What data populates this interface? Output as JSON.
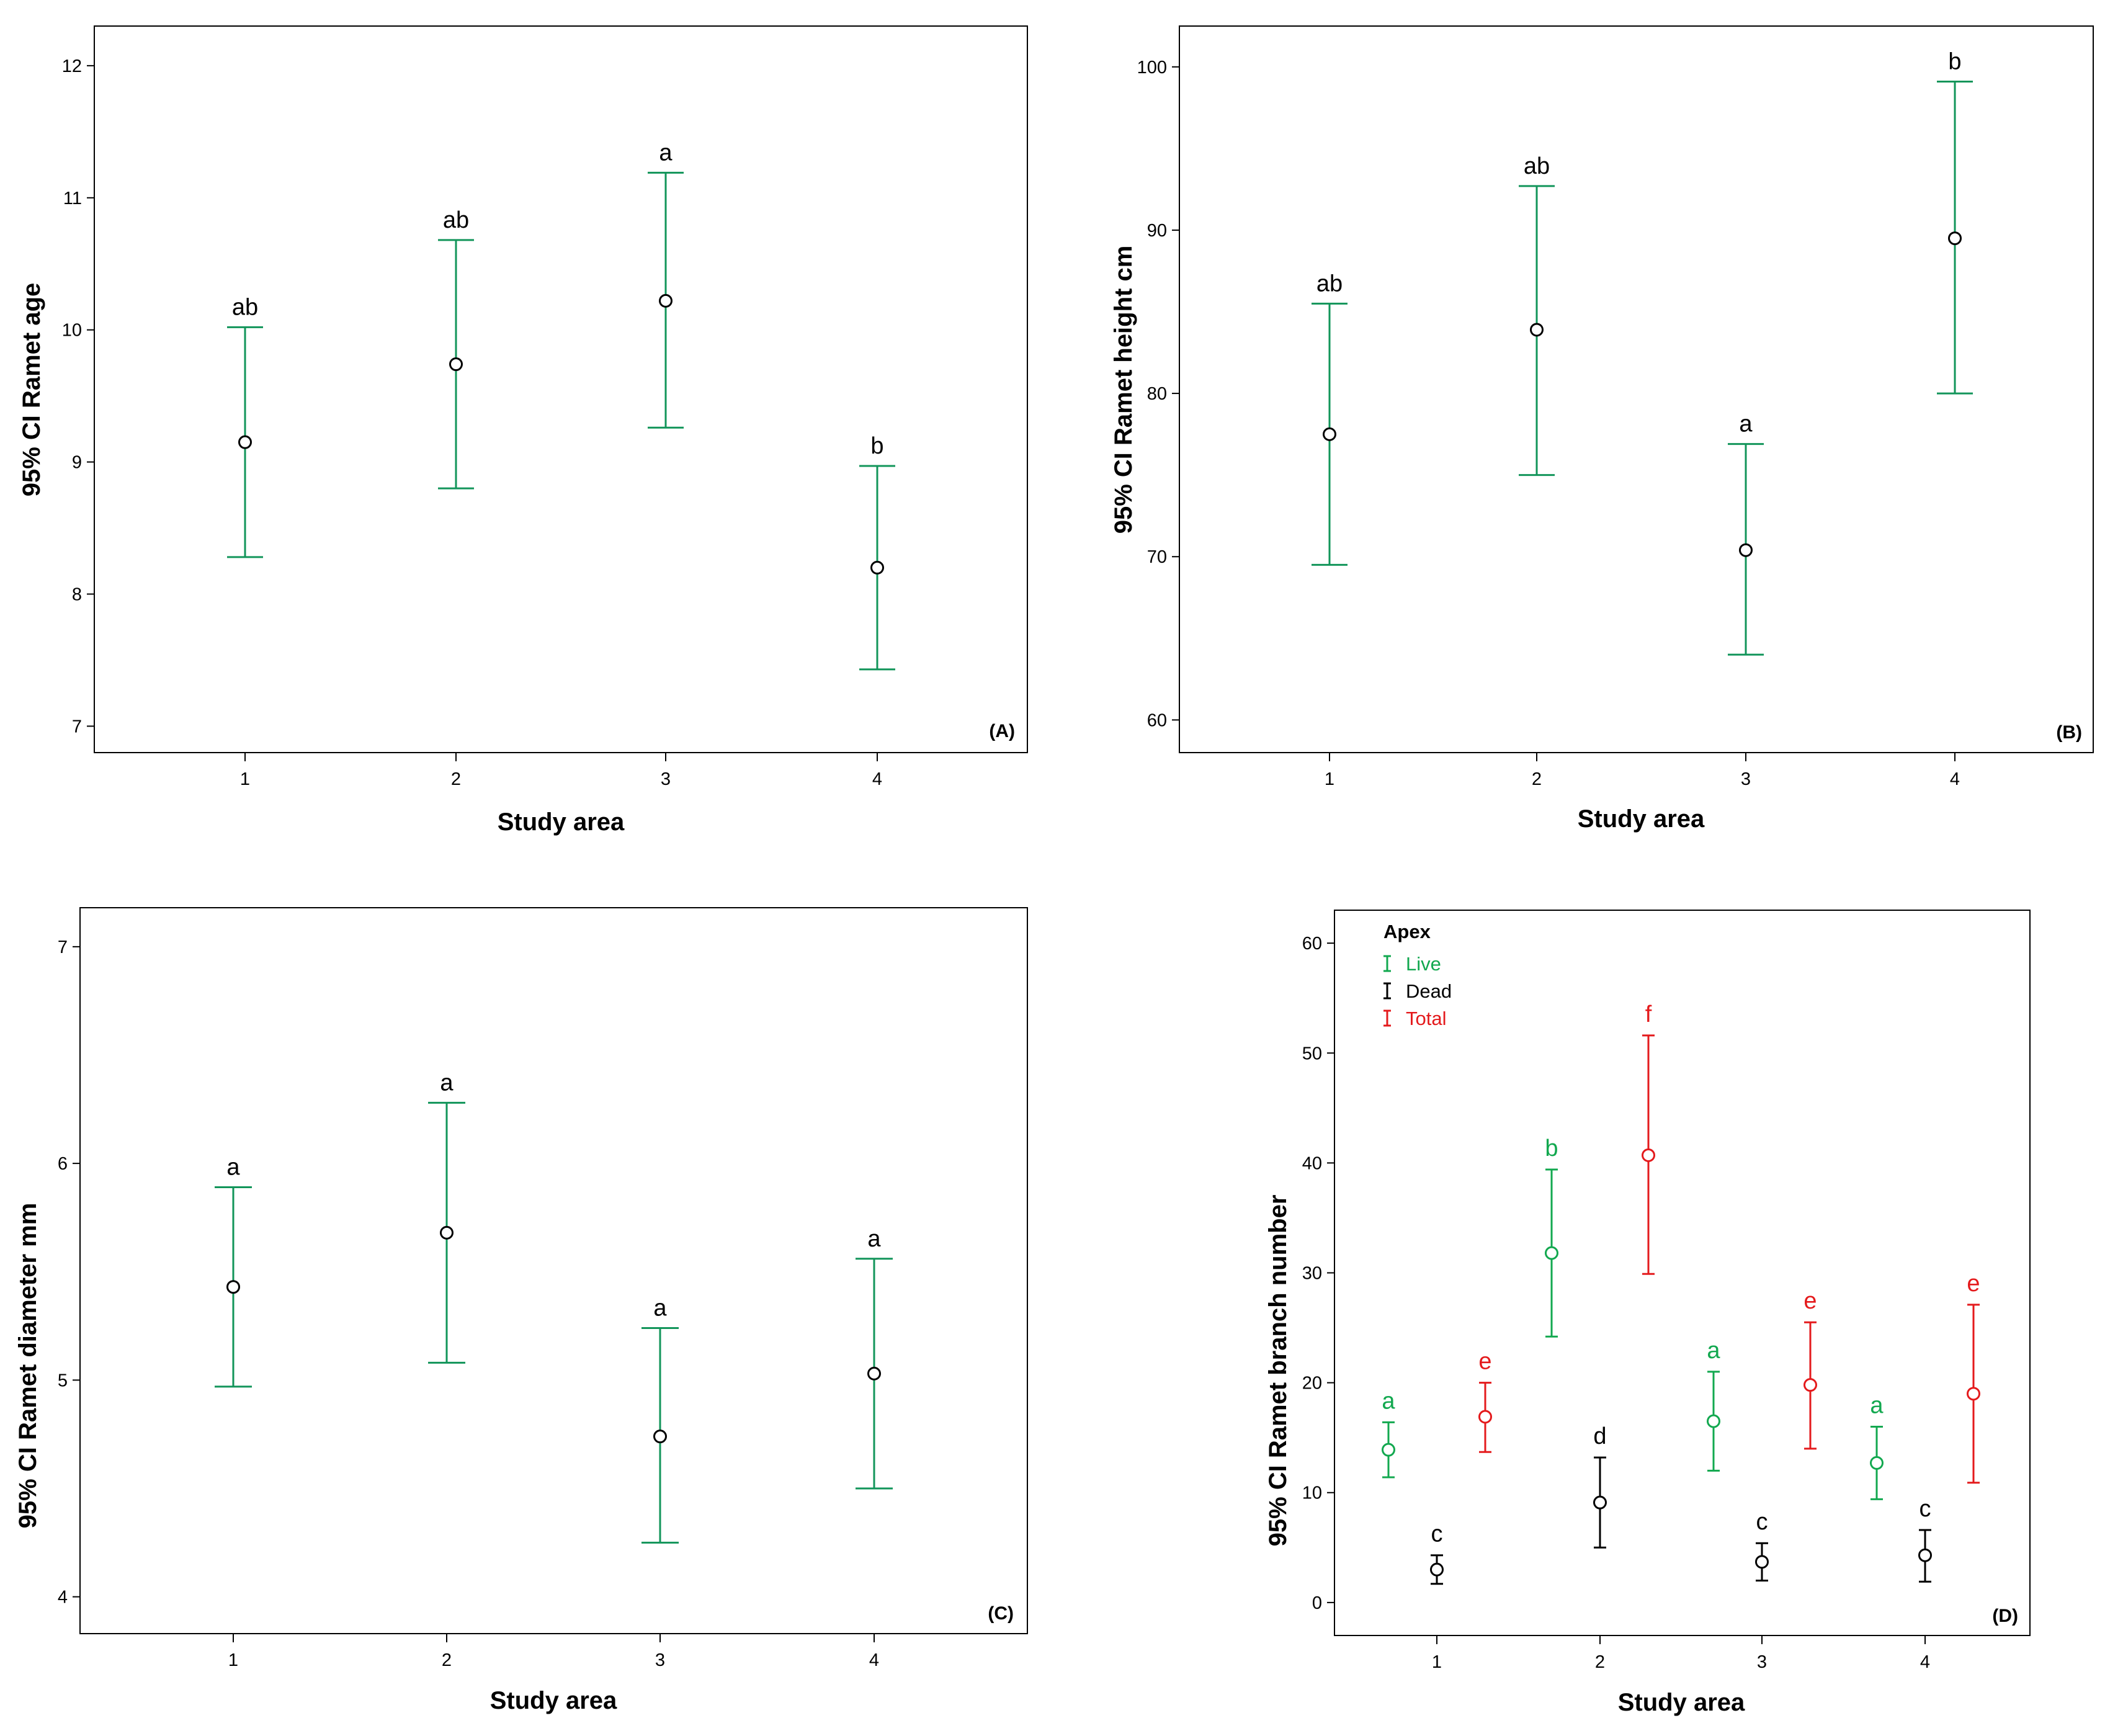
{
  "chart_data": [
    {
      "id": "A",
      "type": "errorbar",
      "panel_label": "(A)",
      "xlabel": "Study area",
      "ylabel": "95% CI Ramet age",
      "categories": [
        "1",
        "2",
        "3",
        "4"
      ],
      "ylim": [
        6.8,
        12.3
      ],
      "yticks": [
        "7",
        "8",
        "9",
        "10",
        "11",
        "12"
      ],
      "series": [
        {
          "name": "Ramet age",
          "color": "#12955a",
          "means": [
            9.15,
            9.74,
            10.22,
            8.2
          ],
          "lower": [
            8.28,
            8.8,
            9.26,
            7.43
          ],
          "upper": [
            10.02,
            10.68,
            11.19,
            8.97
          ],
          "letters": [
            "ab",
            "ab",
            "a",
            "b"
          ]
        }
      ]
    },
    {
      "id": "B",
      "type": "errorbar",
      "panel_label": "(B)",
      "xlabel": "Study area",
      "ylabel": "95% CI Ramet height cm",
      "categories": [
        "1",
        "2",
        "3",
        "4"
      ],
      "ylim": [
        58,
        102.5
      ],
      "yticks": [
        "60",
        "70",
        "80",
        "90",
        "100"
      ],
      "series": [
        {
          "name": "Ramet height",
          "color": "#12955a",
          "means": [
            77.5,
            83.9,
            70.4,
            89.5
          ],
          "lower": [
            69.5,
            75.0,
            64.0,
            80.0
          ],
          "upper": [
            85.5,
            92.7,
            76.9,
            99.1
          ],
          "letters": [
            "ab",
            "ab",
            "a",
            "b"
          ]
        }
      ]
    },
    {
      "id": "C",
      "type": "errorbar",
      "panel_label": "(C)",
      "xlabel": "Study area",
      "ylabel": "95% CI Ramet diameter mm",
      "categories": [
        "1",
        "2",
        "3",
        "4"
      ],
      "ylim": [
        3.83,
        7.18
      ],
      "yticks": [
        "4",
        "5",
        "6",
        "7"
      ],
      "series": [
        {
          "name": "Ramet diameter",
          "color": "#12955a",
          "means": [
            5.43,
            5.68,
            4.74,
            5.03
          ],
          "lower": [
            4.97,
            5.08,
            4.25,
            4.5
          ],
          "upper": [
            5.89,
            6.28,
            5.24,
            5.56
          ],
          "letters": [
            "a",
            "a",
            "a",
            "a"
          ]
        }
      ]
    },
    {
      "id": "D",
      "type": "errorbar",
      "panel_label": "(D)",
      "xlabel": "Study area",
      "ylabel": "95% CI Ramet branch number",
      "categories": [
        "1",
        "2",
        "3",
        "4"
      ],
      "ylim": [
        -3,
        63
      ],
      "yticks": [
        "0",
        "10",
        "20",
        "30",
        "40",
        "50",
        "60"
      ],
      "legend": {
        "title": "Apex",
        "position": "top-left",
        "entries": [
          "Live",
          "Dead",
          "Total"
        ]
      },
      "series": [
        {
          "name": "Live",
          "color": "#12a84f",
          "means": [
            13.9,
            31.8,
            16.5,
            12.7
          ],
          "lower": [
            11.4,
            24.2,
            12.0,
            9.4
          ],
          "upper": [
            16.4,
            39.4,
            21.0,
            16.0
          ],
          "letters": [
            "a",
            "b",
            "a",
            "a"
          ]
        },
        {
          "name": "Dead",
          "color": "#000000",
          "means": [
            3.0,
            9.1,
            3.7,
            4.3
          ],
          "lower": [
            1.7,
            5.0,
            2.0,
            1.9
          ],
          "upper": [
            4.3,
            13.2,
            5.4,
            6.6
          ],
          "letters": [
            "c",
            "d",
            "c",
            "c"
          ]
        },
        {
          "name": "Total",
          "color": "#e41a1c",
          "means": [
            16.9,
            40.7,
            19.8,
            19.0
          ],
          "lower": [
            13.7,
            29.9,
            14.0,
            10.9
          ],
          "upper": [
            20.0,
            51.6,
            25.5,
            27.1
          ],
          "letters": [
            "e",
            "f",
            "e",
            "e"
          ]
        }
      ]
    }
  ]
}
